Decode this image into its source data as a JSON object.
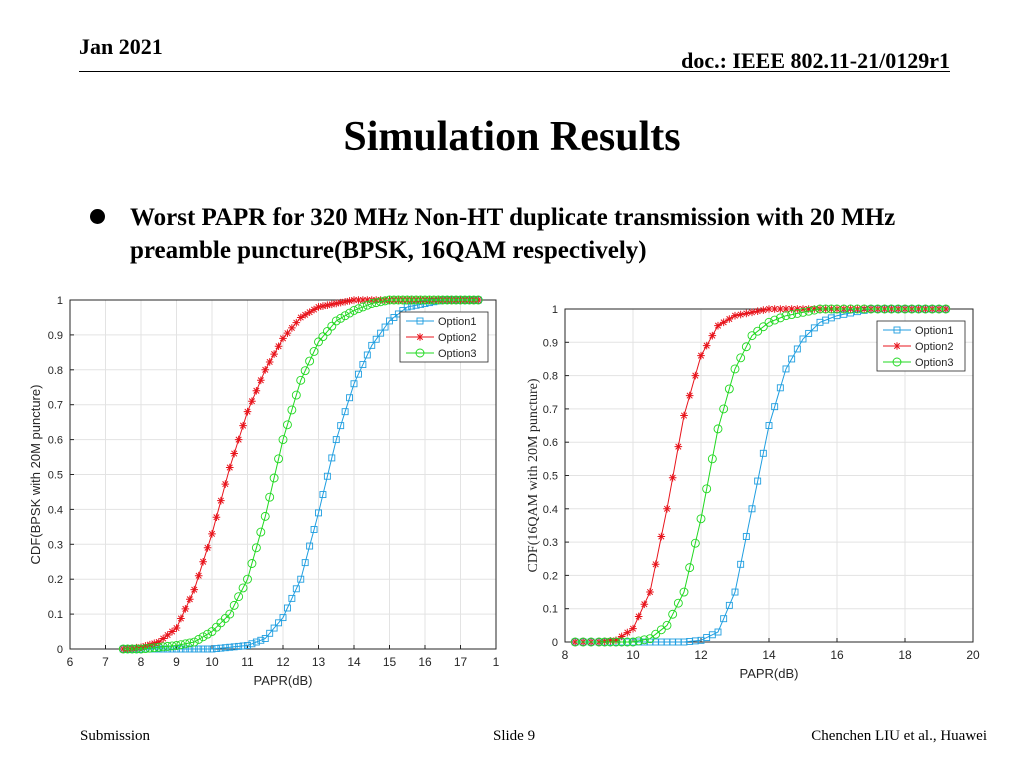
{
  "header": {
    "date": "Jan 2021",
    "doc": "doc.: IEEE 802.11-21/0129r1"
  },
  "slide": {
    "title": "Simulation Results",
    "bullet": "Worst PAPR for 320 MHz Non-HT duplicate transmission with 20 MHz  preamble puncture(BPSK, 16QAM respectively)"
  },
  "footer": {
    "left": "Submission",
    "center": "Slide 9",
    "right": "Chenchen LIU et al., Huawei"
  },
  "colors": {
    "option1": "#1f9ee0",
    "option2": "#e8141c",
    "option3": "#20d820"
  },
  "chart_data": [
    {
      "type": "line",
      "xlabel": "PAPR(dB)",
      "ylabel": "CDF(BPSK with 20M puncture)",
      "xlim": [
        6,
        18
      ],
      "ylim": [
        0,
        1
      ],
      "xticks": [
        "6",
        "7",
        "8",
        "9",
        "10",
        "11",
        "12",
        "13",
        "14",
        "15",
        "16",
        "17",
        "1"
      ],
      "yticks": [
        "0",
        "0.1",
        "0.2",
        "0.3",
        "0.4",
        "0.5",
        "0.6",
        "0.7",
        "0.8",
        "0.9",
        "1"
      ],
      "grid": true,
      "legend": "top-right",
      "x": [
        7.5,
        8,
        8.5,
        9,
        9.5,
        10,
        10.5,
        11,
        11.5,
        12,
        12.5,
        13,
        13.5,
        14,
        14.5,
        15,
        15.5,
        16,
        16.5,
        17,
        17.5
      ],
      "series": [
        {
          "name": "Option1",
          "marker": "square",
          "values": [
            0,
            0,
            0,
            0,
            0,
            0,
            0.005,
            0.01,
            0.03,
            0.09,
            0.2,
            0.39,
            0.6,
            0.76,
            0.87,
            0.94,
            0.98,
            0.99,
            1,
            1,
            1
          ]
        },
        {
          "name": "Option2",
          "marker": "star",
          "values": [
            0,
            0.005,
            0.02,
            0.06,
            0.17,
            0.33,
            0.52,
            0.68,
            0.8,
            0.89,
            0.95,
            0.98,
            0.99,
            1,
            1,
            1,
            1,
            1,
            1,
            1,
            1
          ]
        },
        {
          "name": "Option3",
          "marker": "circle",
          "values": [
            0,
            0,
            0.005,
            0.01,
            0.02,
            0.05,
            0.1,
            0.2,
            0.38,
            0.6,
            0.77,
            0.88,
            0.94,
            0.97,
            0.99,
            1,
            1,
            1,
            1,
            1,
            1
          ]
        }
      ]
    },
    {
      "type": "line",
      "xlabel": "PAPR(dB)",
      "ylabel": "CDF(16QAM with 20M puncture)",
      "xlim": [
        8,
        20
      ],
      "ylim": [
        0,
        1
      ],
      "xticks": [
        "8",
        "10",
        "12",
        "14",
        "16",
        "18",
        "20"
      ],
      "yticks": [
        "0",
        "0.1",
        "0.2",
        "0.3",
        "0.4",
        "0.5",
        "0.6",
        "0.7",
        "0.8",
        "0.9",
        "1"
      ],
      "grid": true,
      "legend": "top-right",
      "x": [
        8.3,
        9,
        9.5,
        10,
        10.5,
        11,
        11.5,
        12,
        12.5,
        13,
        13.5,
        14,
        14.5,
        15,
        15.5,
        16,
        17,
        18,
        19.2
      ],
      "series": [
        {
          "name": "Option1",
          "marker": "square",
          "values": [
            0,
            0,
            0,
            0,
            0,
            0,
            0,
            0.005,
            0.03,
            0.15,
            0.4,
            0.65,
            0.82,
            0.91,
            0.96,
            0.98,
            1,
            1,
            1
          ]
        },
        {
          "name": "Option2",
          "marker": "star",
          "values": [
            0,
            0,
            0.005,
            0.04,
            0.15,
            0.4,
            0.68,
            0.86,
            0.95,
            0.98,
            0.99,
            1,
            1,
            1,
            1,
            1,
            1,
            1,
            1
          ]
        },
        {
          "name": "Option3",
          "marker": "circle",
          "values": [
            0,
            0,
            0,
            0,
            0.01,
            0.05,
            0.15,
            0.37,
            0.64,
            0.82,
            0.92,
            0.96,
            0.98,
            0.99,
            1,
            1,
            1,
            1,
            1
          ]
        }
      ]
    }
  ]
}
